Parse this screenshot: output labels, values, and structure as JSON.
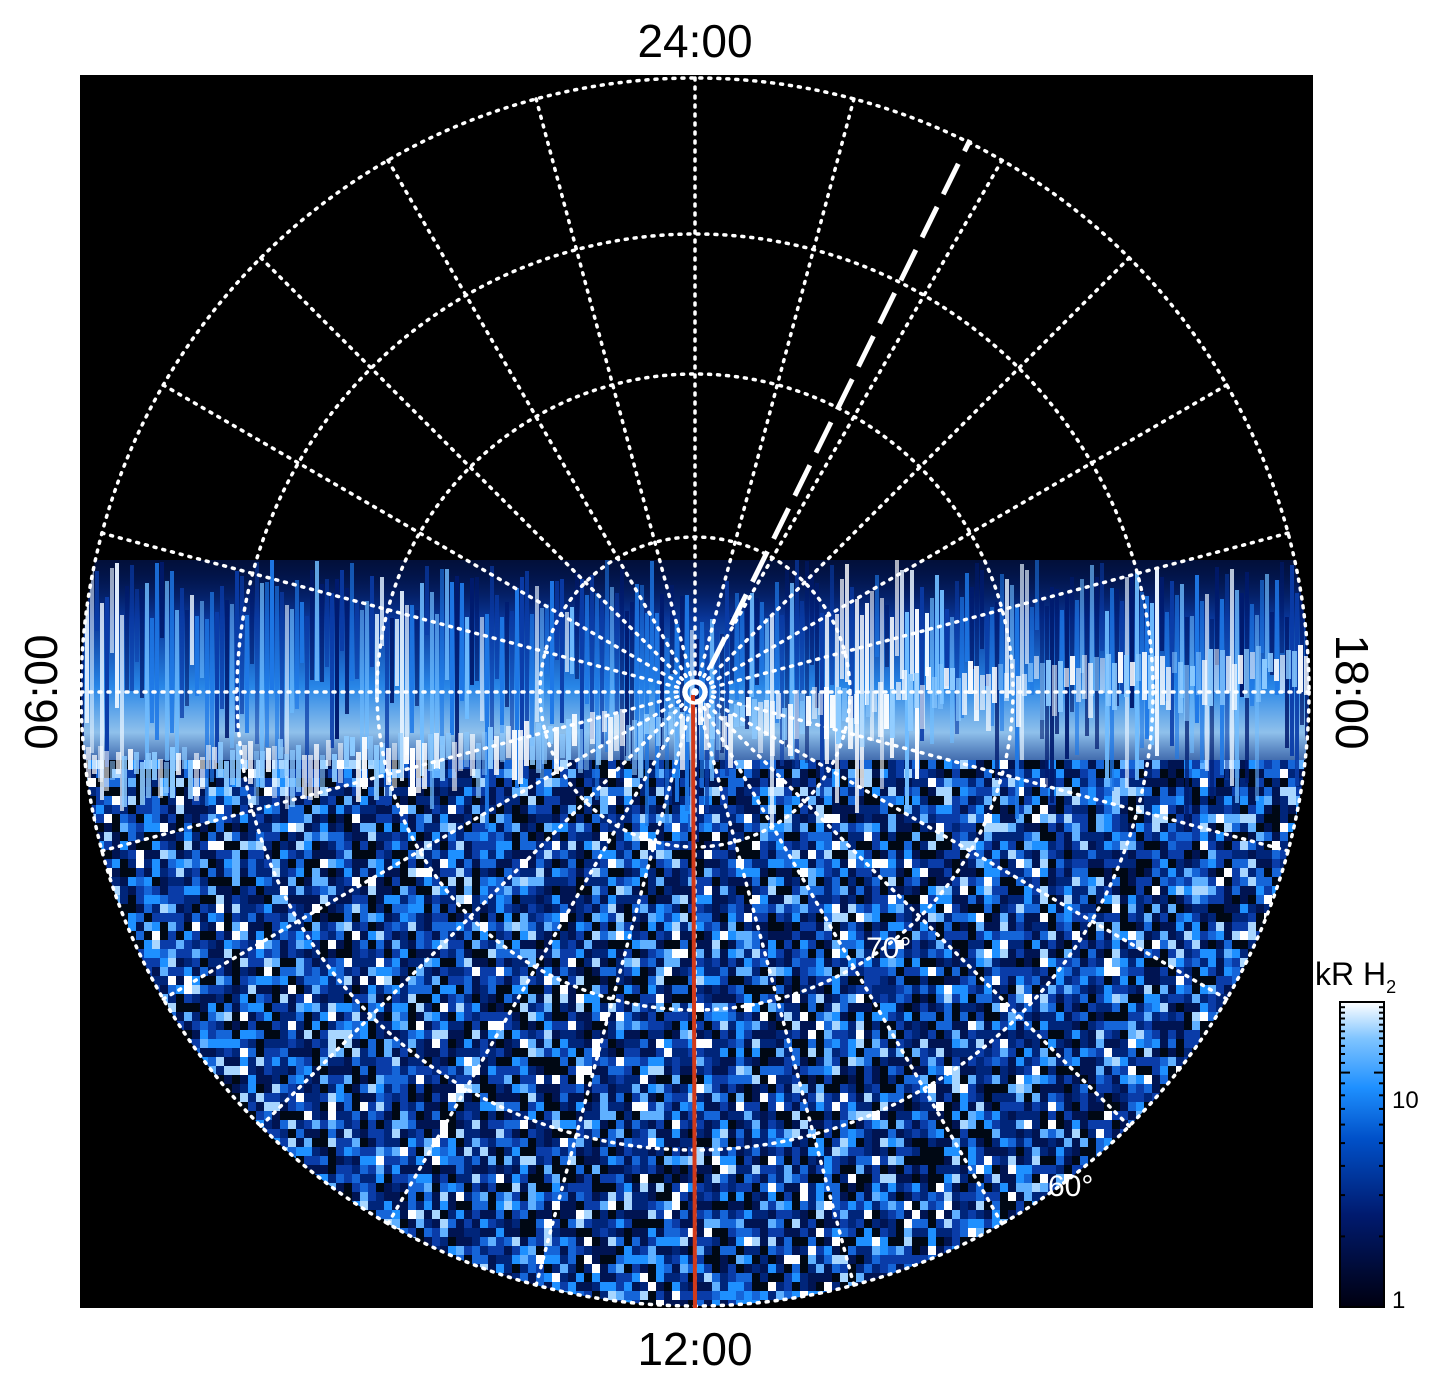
{
  "image": {
    "description": "Polar projection of auroral H2 emission intensity with local-time grid",
    "background": "#000000"
  },
  "local_time_labels": {
    "top": "24:00",
    "bottom": "12:00",
    "left": "06:00",
    "right": "18:00"
  },
  "latitude_labels": {
    "lat70": "70°",
    "lat60": "60°"
  },
  "colorbar": {
    "title_main": "kR H",
    "title_sub": "2",
    "tick_high": "10",
    "tick_low": "1",
    "colors": [
      "#000010",
      "#001a6e",
      "#0050c8",
      "#1e90ff",
      "#7fc4ff",
      "#ffffff"
    ]
  },
  "colors": {
    "grid": "#ffffff",
    "meridian": "#d23a1a",
    "emission_dim": "#00206a",
    "emission_mid": "#1e78e6",
    "emission_bright": "#ffffff"
  }
}
